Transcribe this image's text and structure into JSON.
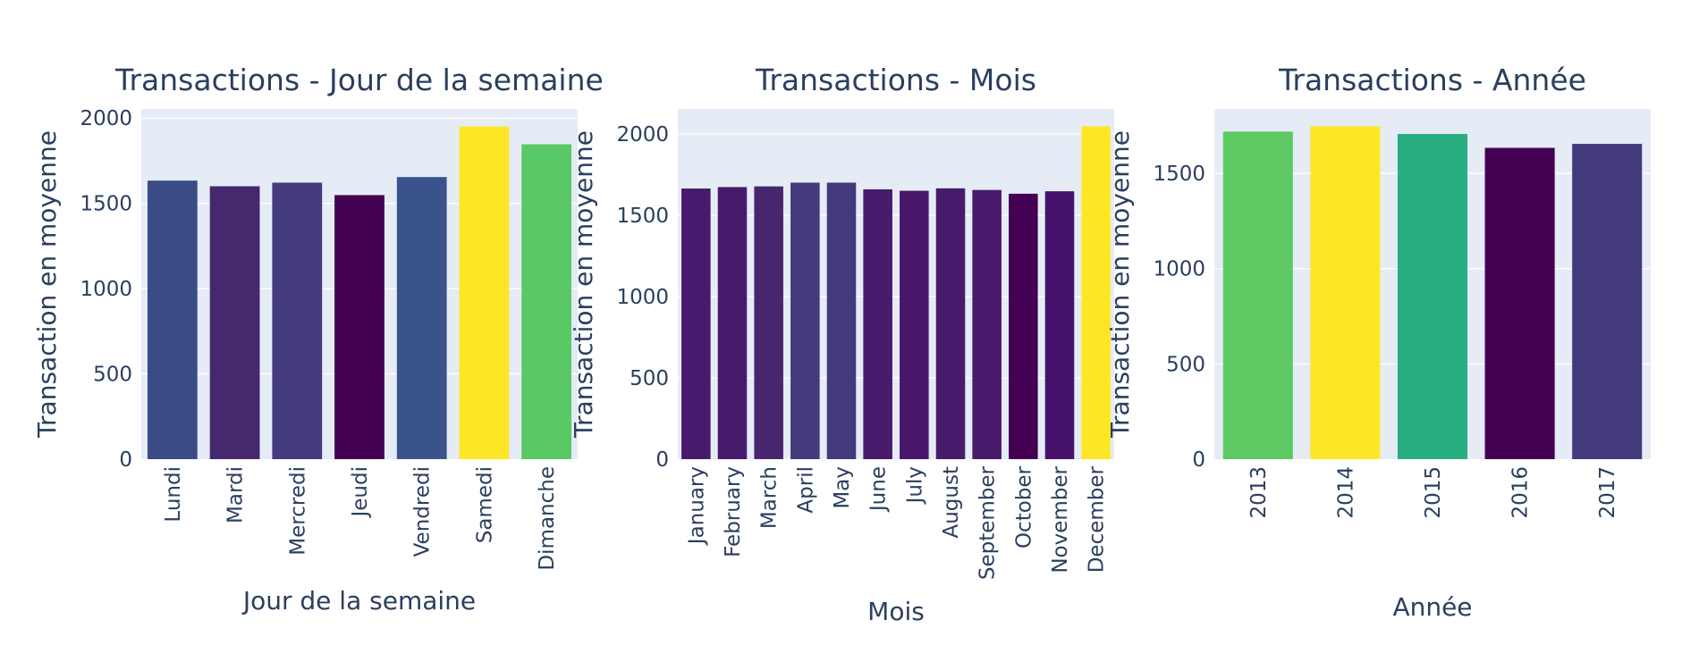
{
  "chart_data": [
    {
      "type": "bar",
      "title": "Transactions - Jour de la semaine",
      "xlabel": "Jour de la semaine",
      "ylabel": "Transaction en moyenne",
      "categories": [
        "Lundi",
        "Mardi",
        "Mercredi",
        "Jeudi",
        "Vendredi",
        "Samedi",
        "Dimanche"
      ],
      "values": [
        1633,
        1600,
        1621,
        1548,
        1654,
        1950,
        1846
      ],
      "yticks": [
        0,
        500,
        1000,
        1500,
        2000
      ],
      "ylim": [
        0,
        2053
      ],
      "grid": true,
      "colors": [
        "#3b4b86",
        "#45296f",
        "#433b7d",
        "#440154",
        "#3a538b",
        "#fde725",
        "#5ac864"
      ]
    },
    {
      "type": "bar",
      "title": "Transactions - Mois",
      "xlabel": "Mois",
      "ylabel": "Transaction en moyenne",
      "categories": [
        "January",
        "February",
        "March",
        "April",
        "May",
        "June",
        "July",
        "August",
        "September",
        "October",
        "November",
        "December"
      ],
      "values": [
        1664,
        1673,
        1677,
        1700,
        1700,
        1659,
        1650,
        1665,
        1655,
        1632,
        1647,
        2046
      ],
      "yticks": [
        0,
        500,
        1000,
        1500,
        2000
      ],
      "ylim": [
        0,
        2153
      ],
      "grid": true,
      "colors": [
        "#481a6c",
        "#481a6c",
        "#48256f",
        "#433a7c",
        "#433a7c",
        "#481a6c",
        "#48166a",
        "#481a6c",
        "#481a6c",
        "#440154",
        "#47126a",
        "#fde725"
      ]
    },
    {
      "type": "bar",
      "title": "Transactions - Année",
      "xlabel": "Année",
      "ylabel": "Transaction en moyenne",
      "categories": [
        "2013",
        "2014",
        "2015",
        "2016",
        "2017"
      ],
      "values": [
        1719,
        1747,
        1707,
        1634,
        1655
      ],
      "yticks": [
        0,
        500,
        1000,
        1500
      ],
      "ylim": [
        0,
        1838
      ],
      "grid": true,
      "colors": [
        "#5ec962",
        "#fde725",
        "#28ae80",
        "#440154",
        "#433a7c"
      ]
    }
  ]
}
